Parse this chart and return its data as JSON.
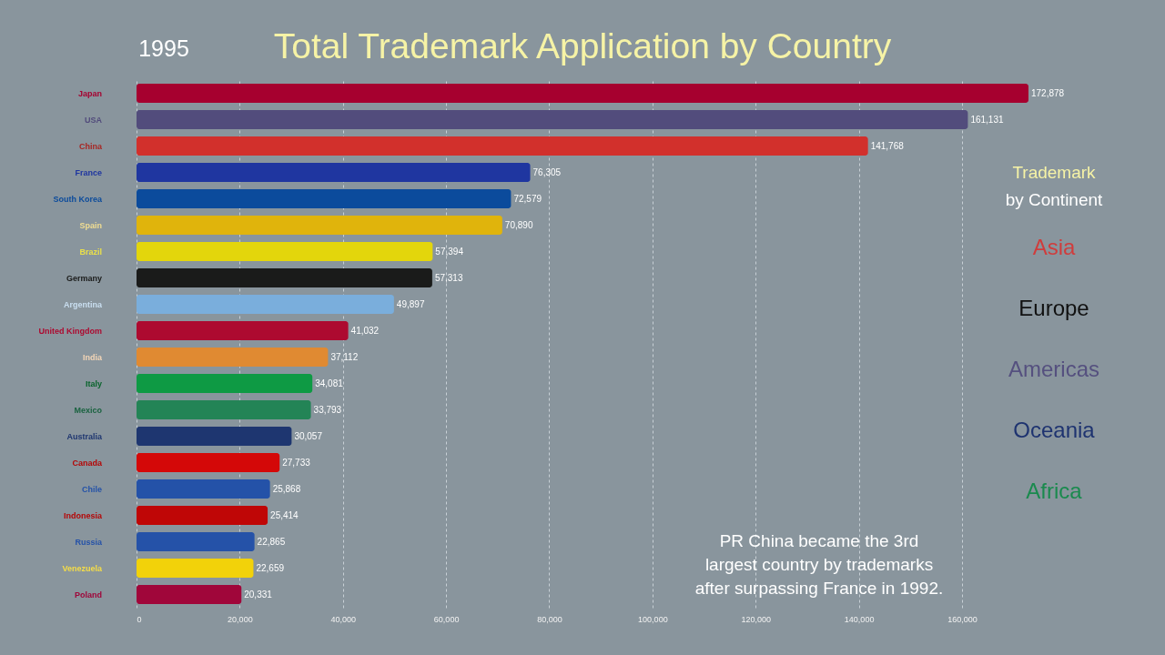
{
  "chart_data": {
    "type": "bar",
    "orientation": "horizontal",
    "title": "Total Trademark Application by Country",
    "subtitle": "1995",
    "categories": [
      "Japan",
      "USA",
      "China",
      "France",
      "South Korea",
      "Spain",
      "Brazil",
      "Germany",
      "Argentina",
      "United Kingdom",
      "India",
      "Italy",
      "Mexico",
      "Australia",
      "Canada",
      "Chile",
      "Indonesia",
      "Russia",
      "Venezuela",
      "Poland"
    ],
    "series": [
      {
        "values": [
          172878,
          161131,
          141768,
          76305,
          72579,
          70890,
          57394,
          57313,
          49897,
          41032,
          37112,
          34081,
          33793,
          30057,
          27733,
          25868,
          25414,
          22865,
          22659,
          20331
        ],
        "value_labels": [
          "172,878",
          "161,131",
          "141,768",
          "76,305",
          "72,579",
          "70,890",
          "57,394",
          "57,313",
          "49,897",
          "41,032",
          "37,112",
          "34,081",
          "33,793",
          "30,057",
          "27,733",
          "25,868",
          "25,414",
          "22,865",
          "22,659",
          "20,331"
        ],
        "colors": [
          "#a6002f",
          "#524c7c",
          "#d2302c",
          "#1f36a0",
          "#0b4b9c",
          "#e0b40c",
          "#e3d60c",
          "#1a1b1a",
          "#7aaedc",
          "#ad0a30",
          "#e08a32",
          "#0e9a44",
          "#238456",
          "#1e3670",
          "#d40808",
          "#2452a8",
          "#bf0606",
          "#2552a8",
          "#f2d20a",
          "#a0063a"
        ]
      },
      {
        "name": "Asia",
        "color": "#d03c3c",
        "values": [
          null,
          null,
          null,
          null,
          null,
          null,
          null,
          null,
          null,
          null,
          null,
          null,
          null,
          null,
          null,
          null,
          null,
          null,
          null,
          null
        ]
      },
      {
        "name": "Europe",
        "color": "#111111",
        "values": [
          null,
          null,
          null,
          null,
          null,
          null,
          null,
          null,
          null,
          null,
          null,
          null,
          null,
          null,
          null,
          null,
          null,
          null,
          null,
          null
        ]
      },
      {
        "name": "Americas",
        "color": "#55507f",
        "values": [
          null,
          null,
          null,
          null,
          null,
          null,
          null,
          null,
          null,
          null,
          null,
          null,
          null,
          null,
          null,
          null,
          null,
          null,
          null,
          null
        ]
      },
      {
        "name": "Oceania",
        "color": "#1e3370",
        "values": [
          null,
          null,
          null,
          null,
          null,
          null,
          null,
          null,
          null,
          null,
          null,
          null,
          null,
          null,
          null,
          null,
          null,
          null,
          null,
          null
        ]
      },
      {
        "name": "Africa",
        "color": "#1a8a4e",
        "values": [
          null,
          null,
          null,
          null,
          null,
          null,
          null,
          null,
          null,
          null,
          null,
          null,
          null,
          null,
          null,
          null,
          null,
          null,
          null,
          null
        ]
      }
    ],
    "xlim": [
      0,
      172878
    ],
    "xticks": [
      0,
      {
        "value": 20000,
        "label": "20,000"
      },
      {
        "value": 40000,
        "label": "40,000"
      },
      {
        "value": 60000,
        "label": "60,000"
      },
      {
        "value": 80000,
        "label": "80,000"
      },
      {
        "value": 100000,
        "label": "100,000"
      },
      {
        "value": 120000,
        "label": "120,000"
      },
      {
        "value": 140000,
        "label": "140,000"
      },
      {
        "value": 160000,
        "label": "160,000"
      }
    ],
    "grid": "x",
    "legend_title": "Trademark\nby Continent",
    "annotations": [
      "PR China became the 3rd\nlargest country by trademarks\nafter surpassing France in 1992."
    ]
  }
}
